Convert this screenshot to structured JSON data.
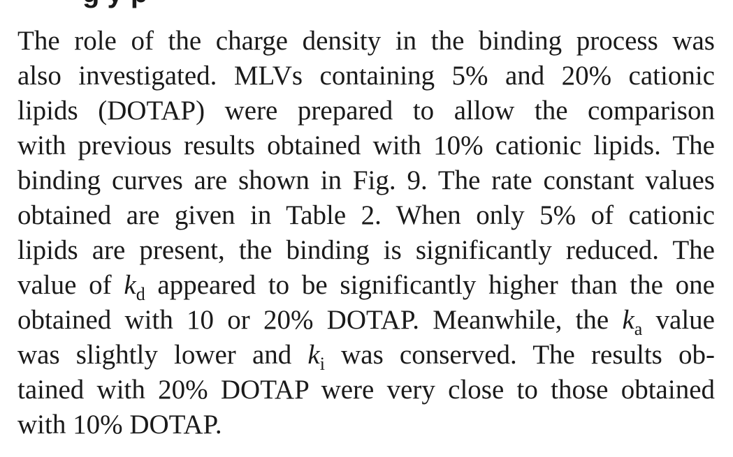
{
  "heading_fragment": "g           y  p",
  "paragraph": {
    "lines": [
      [
        "The role of the charge density in the binding process was"
      ],
      [
        "also investigated. MLVs containing 5% and 20% cationic"
      ],
      [
        "lipids (DOTAP) were prepared to allow the comparison"
      ],
      [
        "with previous results obtained with 10% cationic lipids. The"
      ],
      [
        "binding curves are shown in Fig. 9. The rate constant values"
      ],
      [
        "obtained are given in Table 2. When only 5% of cationic"
      ],
      [
        "lipids are present, the binding is significantly reduced. The"
      ],
      [
        "value of ",
        "k",
        "d",
        " appeared to be significantly higher than the one"
      ],
      [
        "obtained with 10 or 20% DOTAP. Meanwhile, the ",
        "k",
        "a",
        " value"
      ],
      [
        "was slightly lower and ",
        "k",
        "i",
        " was conserved. The results ob-"
      ],
      [
        "tained with 20% DOTAP were very close to those obtained"
      ],
      [
        "with 10% DOTAP."
      ]
    ]
  }
}
